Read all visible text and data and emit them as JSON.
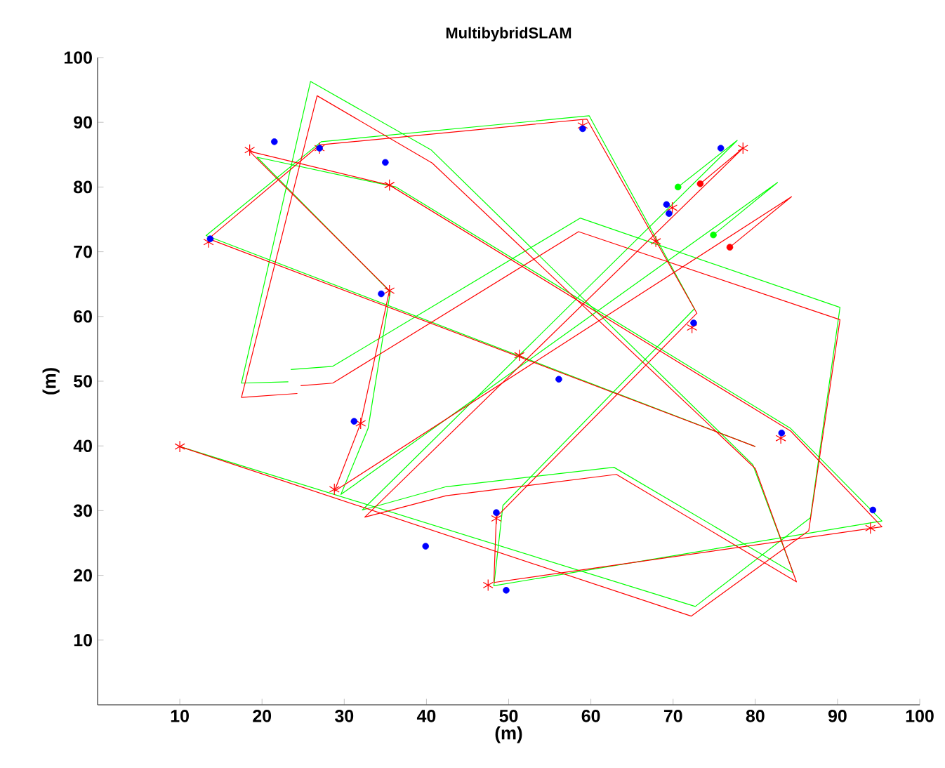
{
  "chart_data": {
    "type": "line",
    "title": "MultibybridSLAM",
    "xlabel": "(m)",
    "ylabel": "(m)",
    "xlim": [
      0,
      100
    ],
    "ylim": [
      0,
      100
    ],
    "xticks": [
      10,
      20,
      30,
      40,
      50,
      60,
      70,
      80,
      90,
      100
    ],
    "yticks": [
      10,
      20,
      30,
      40,
      50,
      60,
      70,
      80,
      90,
      100
    ],
    "series": [
      {
        "marker": "none",
        "color": "#00ff00",
        "x": [
          10,
          72.7,
          86.7,
          90.3,
          58.7,
          28.6,
          23.5
        ],
        "values": [
          39.9,
          15.2,
          28.9,
          61.4,
          75.2,
          52.3,
          51.8
        ]
      },
      {
        "marker": "none",
        "color": "#00ff00",
        "x": [
          23.2,
          17.5,
          25.9,
          40.6,
          79.7,
          84.6,
          62.8,
          42.4,
          32.2,
          77.8,
          70.6
        ],
        "values": [
          49.9,
          49.7,
          96.3,
          85.7,
          37.1,
          20.4,
          36.7,
          33.7,
          30.1,
          87.2,
          80.0
        ]
      },
      {
        "marker": "none",
        "color": "#00ff00",
        "x": [
          74.9,
          82.7,
          29.6,
          32.9,
          35.6,
          19.4,
          36.3,
          84.3,
          95.4,
          48.2,
          49.3,
          72.6,
          59.8,
          27.2,
          13.2,
          80.0
        ],
        "values": [
          72.6,
          80.7,
          32.5,
          42.7,
          63.8,
          84.6,
          80.0,
          42.7,
          28.4,
          18.4,
          30.8,
          61.2,
          91.0,
          87.0,
          72.5,
          39.9
        ]
      },
      {
        "marker": "none",
        "color": "#ff0000",
        "x": [
          10,
          72.2,
          86.5,
          90.3,
          58.5,
          28.6,
          24.7
        ],
        "values": [
          39.9,
          13.7,
          26.9,
          59.5,
          73.1,
          49.7,
          49.3
        ]
      },
      {
        "marker": "none",
        "color": "#ff0000",
        "x": [
          24.3,
          17.5,
          26.7,
          40.7,
          80.0,
          85.0,
          63.1,
          42.4,
          32.5,
          78.5,
          73.3
        ],
        "values": [
          48.1,
          47.5,
          94.1,
          83.7,
          36.5,
          19.0,
          35.6,
          32.3,
          29.0,
          86.0,
          80.5
        ]
      },
      {
        "marker": "none",
        "color": "#ff0000",
        "x": [
          76.9,
          84.4,
          28.8,
          32.0,
          35.5,
          18.5,
          35.5,
          84.3,
          95.4,
          48.2,
          48.5,
          72.9,
          59.5,
          27.0,
          13.5,
          80.0
        ],
        "values": [
          70.7,
          78.5,
          33.0,
          43.5,
          64.0,
          85.5,
          80.3,
          42.3,
          27.5,
          18.9,
          29.0,
          60.5,
          90.5,
          86.5,
          72.0,
          39.9
        ]
      },
      {
        "type": "scatter",
        "marker": "cross",
        "color": "#ff0000",
        "x": [
          10,
          13.5,
          18.5,
          27,
          35.5,
          35.5,
          32,
          28.8,
          47.5,
          48.5,
          51.3,
          59,
          67.9,
          69.9,
          78.5,
          72.3,
          83.1,
          94
        ],
        "values": [
          39.9,
          71.5,
          85.7,
          86,
          80.3,
          64,
          43.5,
          33.3,
          18.5,
          28.8,
          54,
          89.5,
          71.6,
          76.8,
          86,
          58.3,
          41.2,
          27.3
        ]
      },
      {
        "type": "scatter",
        "marker": "circle",
        "color": "#0000ff",
        "x": [
          13.7,
          21.5,
          27,
          35,
          34.5,
          31.2,
          39.9,
          48.5,
          49.7,
          56.1,
          59,
          69.2,
          69.5,
          75.8,
          72.5,
          83.2,
          94.3
        ],
        "values": [
          72,
          87,
          86,
          83.8,
          63.5,
          43.8,
          24.5,
          29.7,
          17.7,
          50.3,
          89,
          77.3,
          75.9,
          86,
          59,
          42,
          30.1
        ]
      },
      {
        "type": "scatter",
        "marker": "circle",
        "color": "#ff0000",
        "x": [
          73.3,
          76.9
        ],
        "values": [
          80.5,
          70.7
        ]
      },
      {
        "type": "scatter",
        "marker": "circle",
        "color": "#00ff00",
        "x": [
          70.6,
          74.9
        ],
        "values": [
          80.0,
          72.6
        ]
      }
    ]
  }
}
